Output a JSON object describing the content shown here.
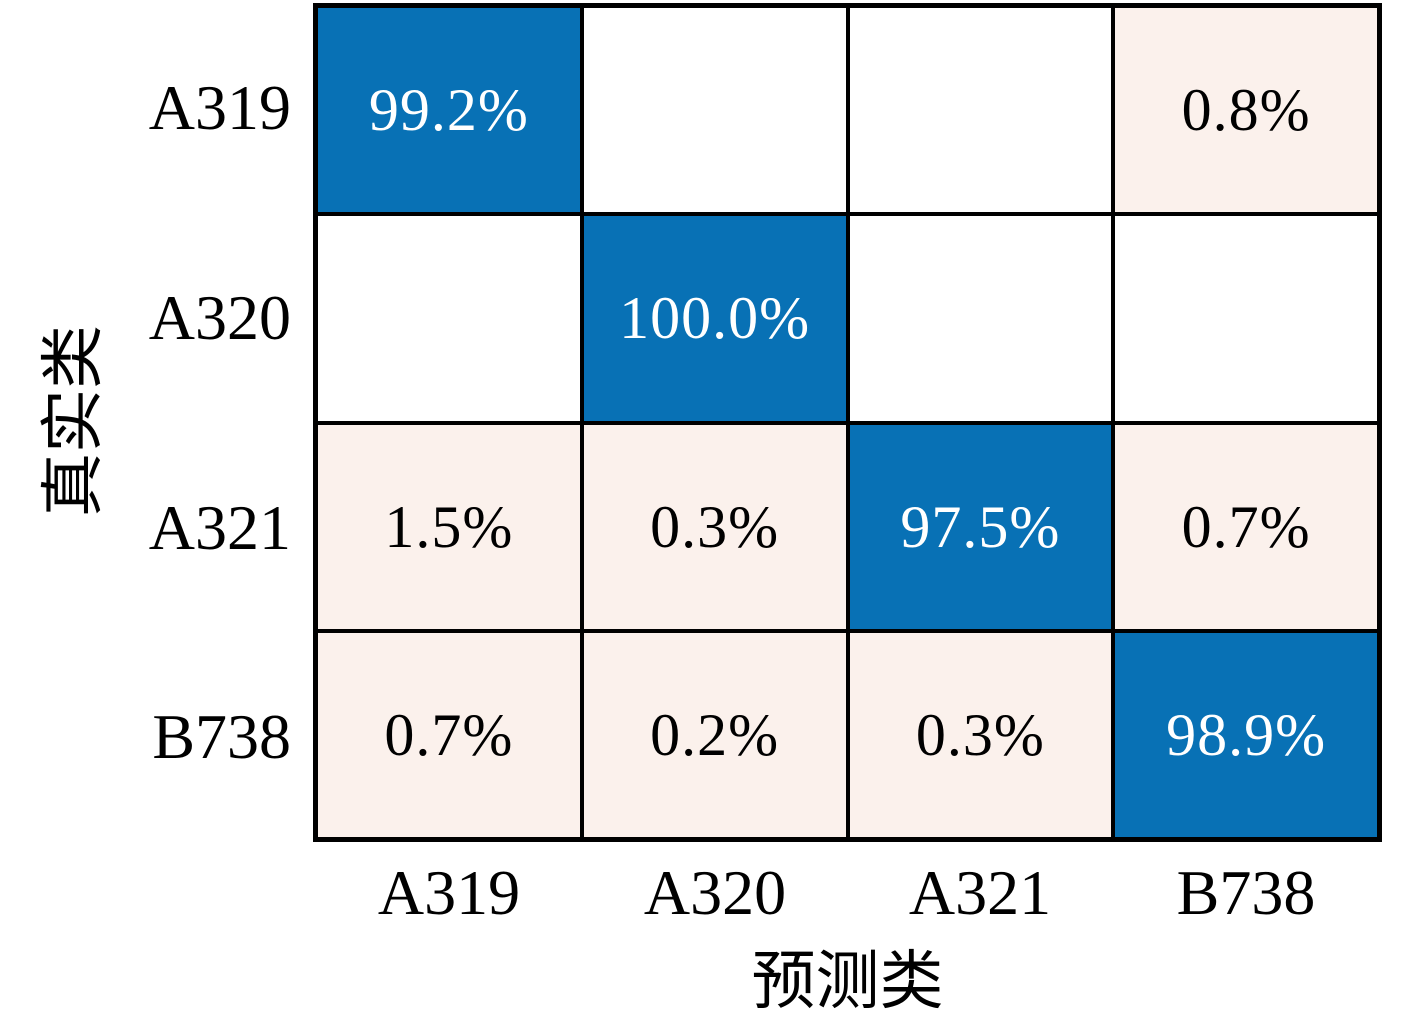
{
  "chart_data": {
    "type": "heatmap",
    "subtype": "confusion-matrix",
    "title": "",
    "xlabel": "预测类",
    "ylabel": "真实类",
    "classes": [
      "A319",
      "A320",
      "A321",
      "B738"
    ],
    "grid": true,
    "value_range_percent": [
      0,
      100
    ],
    "colors": {
      "diagonal": "#0871B5",
      "diagonal_text": "#ffffff",
      "offdiagonal": "#fbf1ec",
      "offdiagonal_text": "#000000",
      "zero": "#ffffff",
      "gridline": "#000000"
    },
    "rows": [
      {
        "label": "A319",
        "cells": [
          {
            "text": "99.2%",
            "value": 99.2,
            "kind": "diagonal"
          },
          {
            "text": "",
            "value": 0,
            "kind": "zero"
          },
          {
            "text": "",
            "value": 0,
            "kind": "zero"
          },
          {
            "text": "0.8%",
            "value": 0.8,
            "kind": "offdiag"
          }
        ]
      },
      {
        "label": "A320",
        "cells": [
          {
            "text": "",
            "value": 0,
            "kind": "zero"
          },
          {
            "text": "100.0%",
            "value": 100.0,
            "kind": "diagonal"
          },
          {
            "text": "",
            "value": 0,
            "kind": "zero"
          },
          {
            "text": "",
            "value": 0,
            "kind": "zero"
          }
        ]
      },
      {
        "label": "A321",
        "cells": [
          {
            "text": "1.5%",
            "value": 1.5,
            "kind": "offdiag"
          },
          {
            "text": "0.3%",
            "value": 0.3,
            "kind": "offdiag"
          },
          {
            "text": "97.5%",
            "value": 97.5,
            "kind": "diagonal"
          },
          {
            "text": "0.7%",
            "value": 0.7,
            "kind": "offdiag"
          }
        ]
      },
      {
        "label": "B738",
        "cells": [
          {
            "text": "0.7%",
            "value": 0.7,
            "kind": "offdiag"
          },
          {
            "text": "0.2%",
            "value": 0.2,
            "kind": "offdiag"
          },
          {
            "text": "0.3%",
            "value": 0.3,
            "kind": "offdiag"
          },
          {
            "text": "98.9%",
            "value": 98.9,
            "kind": "diagonal"
          }
        ]
      }
    ]
  }
}
